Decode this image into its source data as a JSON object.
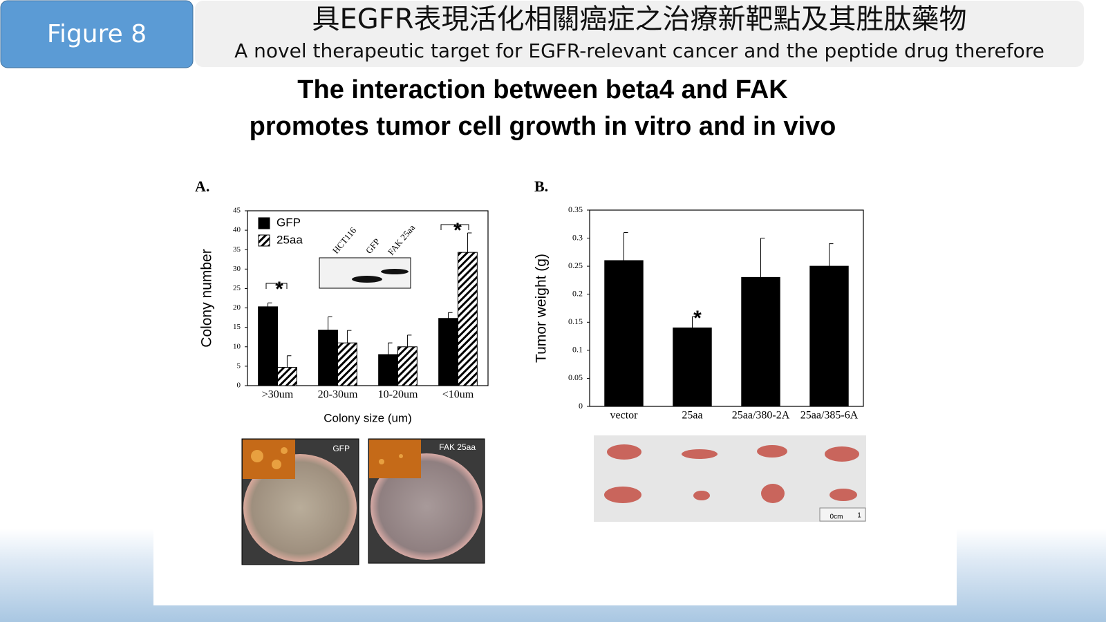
{
  "header": {
    "figure_label": "Figure 8",
    "title_zh": "具EGFR表現活化相關癌症之治療新靶點及其胜肽藥物",
    "title_en": "A novel therapeutic target for EGFR-relevant cancer and the peptide drug therefore"
  },
  "heading": [
    "The interaction between beta4 and FAK",
    "promotes tumor cell growth in vitro and in vivo"
  ],
  "blot_labels": [
    "HCT116",
    "GFP",
    "FAK 25aa"
  ],
  "plate_labels": [
    "GFP",
    "FAK 25aa"
  ],
  "ruler_labels": [
    "0cm",
    "1"
  ],
  "chart_data": [
    {
      "type": "bar",
      "panel": "A.",
      "ylabel": "Colony number",
      "xlabel": "Colony size (um)",
      "categories": [
        ">30um",
        "20-30um",
        "10-20um",
        "<10um"
      ],
      "series": [
        {
          "name": "GFP",
          "color": "#000000",
          "pattern": "solid",
          "values": [
            20.3,
            14.3,
            8,
            17.3
          ],
          "errors": [
            1,
            3.4,
            3,
            1.5
          ]
        },
        {
          "name": "25aa",
          "color": "#000000",
          "pattern": "hatch",
          "values": [
            4.7,
            11,
            10,
            34.3
          ],
          "errors": [
            3,
            3.2,
            3,
            5
          ]
        }
      ],
      "ylim": [
        0,
        45
      ],
      "yticks": [
        0,
        5,
        10,
        15,
        20,
        25,
        30,
        35,
        40,
        45
      ],
      "legend": "upper left",
      "annotations": [
        "*",
        "*"
      ]
    },
    {
      "type": "bar",
      "panel": "B.",
      "ylabel": "Tumor weight (g)",
      "categories": [
        "vector",
        "25aa",
        "25aa/380-2A",
        "25aa/385-6A"
      ],
      "series": [
        {
          "name": "Tumor weight",
          "color": "#000000",
          "pattern": "solid",
          "values": [
            0.26,
            0.14,
            0.23,
            0.25
          ],
          "errors": [
            0.05,
            0.02,
            0.07,
            0.04
          ]
        }
      ],
      "ylim": [
        0,
        0.35
      ],
      "yticks": [
        0,
        0.05,
        0.1,
        0.15,
        0.2,
        0.25,
        0.3,
        0.35
      ],
      "annotations": [
        "*"
      ]
    }
  ]
}
